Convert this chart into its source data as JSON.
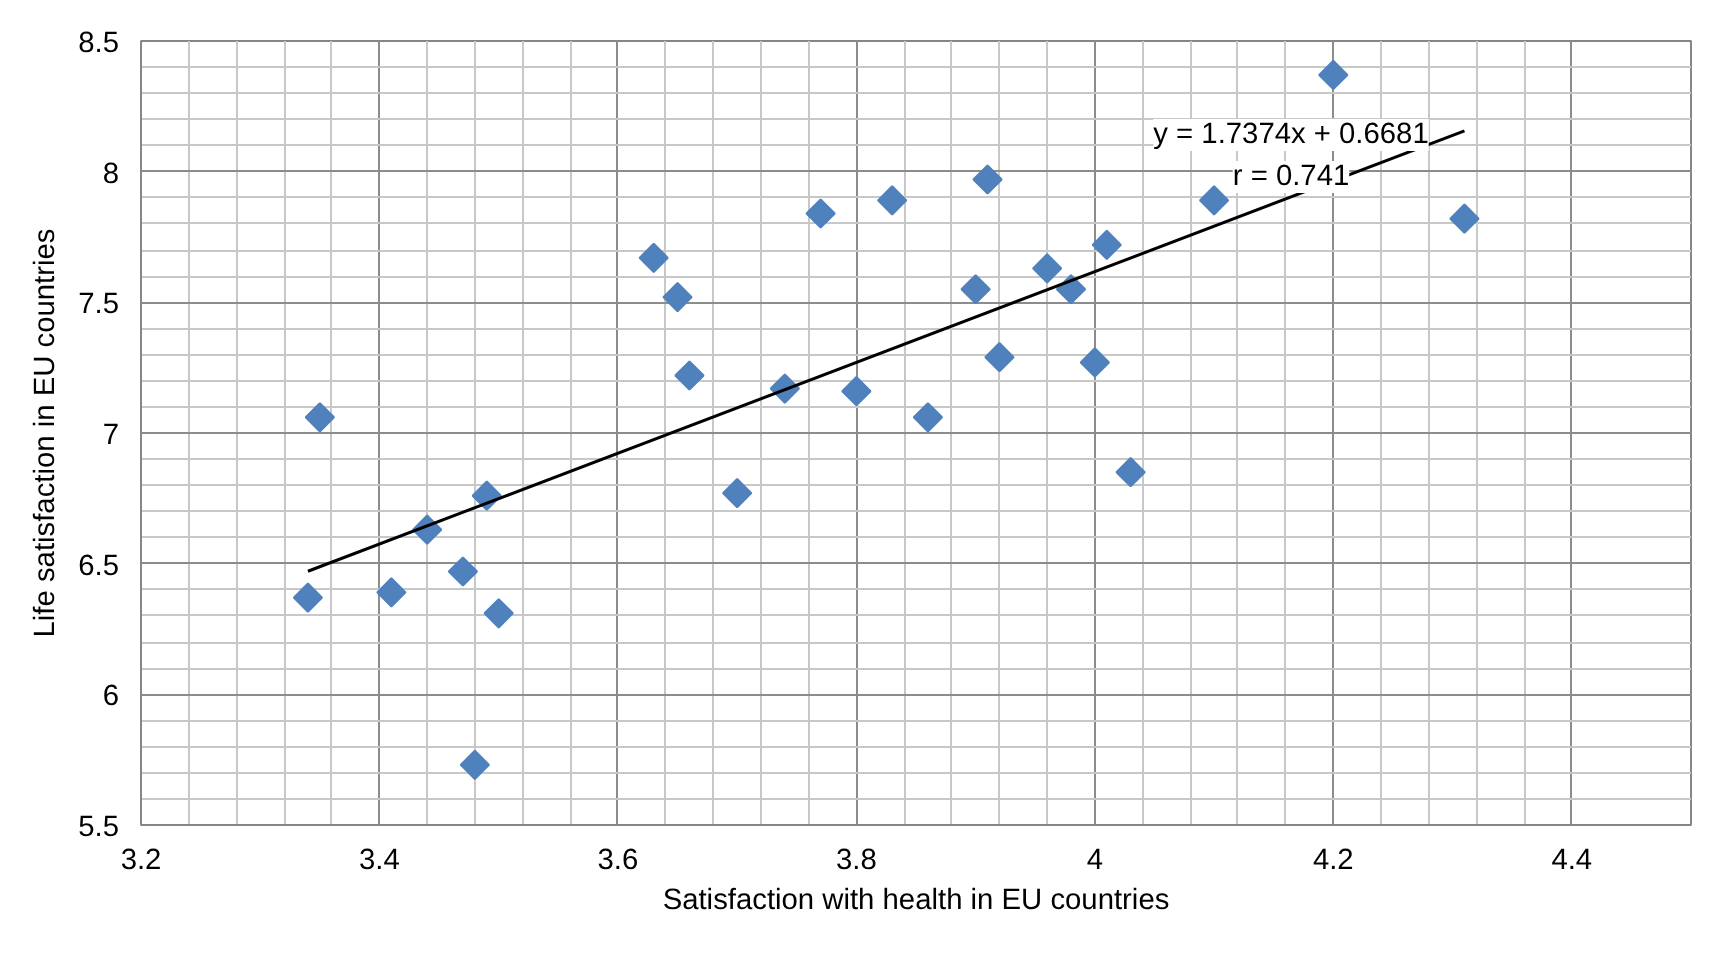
{
  "chart_data": {
    "type": "scatter",
    "xlabel": "Satisfaction with health in EU countries",
    "ylabel": "Life satisfaction in EU countries",
    "xlim": [
      3.2,
      4.5
    ],
    "ylim": [
      5.5,
      8.5
    ],
    "xticks": [
      3.2,
      3.4,
      3.6,
      3.8,
      4,
      4.2,
      4.4
    ],
    "yticks": [
      5.5,
      6,
      6.5,
      7,
      7.5,
      8,
      8.5
    ],
    "grid": true,
    "marker": "diamond",
    "series": [
      {
        "color": "#4f81bd",
        "x": [
          3.35,
          3.34,
          3.41,
          3.44,
          3.47,
          3.49,
          3.5,
          3.48,
          3.63,
          3.65,
          3.66,
          3.7,
          3.74,
          3.77,
          3.8,
          3.83,
          3.91,
          3.9,
          3.92,
          3.86,
          3.96,
          3.98,
          4.01,
          4.0,
          4.03,
          4.1,
          4.2,
          4.31
        ],
        "values": [
          7.06,
          6.37,
          6.39,
          6.63,
          6.47,
          6.76,
          6.31,
          5.73,
          7.67,
          7.52,
          7.22,
          6.77,
          7.17,
          7.84,
          7.16,
          7.89,
          7.97,
          7.55,
          7.29,
          7.06,
          7.63,
          7.55,
          7.72,
          7.27,
          6.85,
          7.89,
          8.37,
          7.82
        ]
      },
      {
        "type": "line",
        "color": "#000000",
        "marker": "none",
        "x": [
          3.34,
          4.31
        ],
        "values": [
          6.471,
          8.156
        ]
      }
    ],
    "annotations": [
      "y = 1.7374x + 0.6681",
      "r = 0.741"
    ]
  }
}
